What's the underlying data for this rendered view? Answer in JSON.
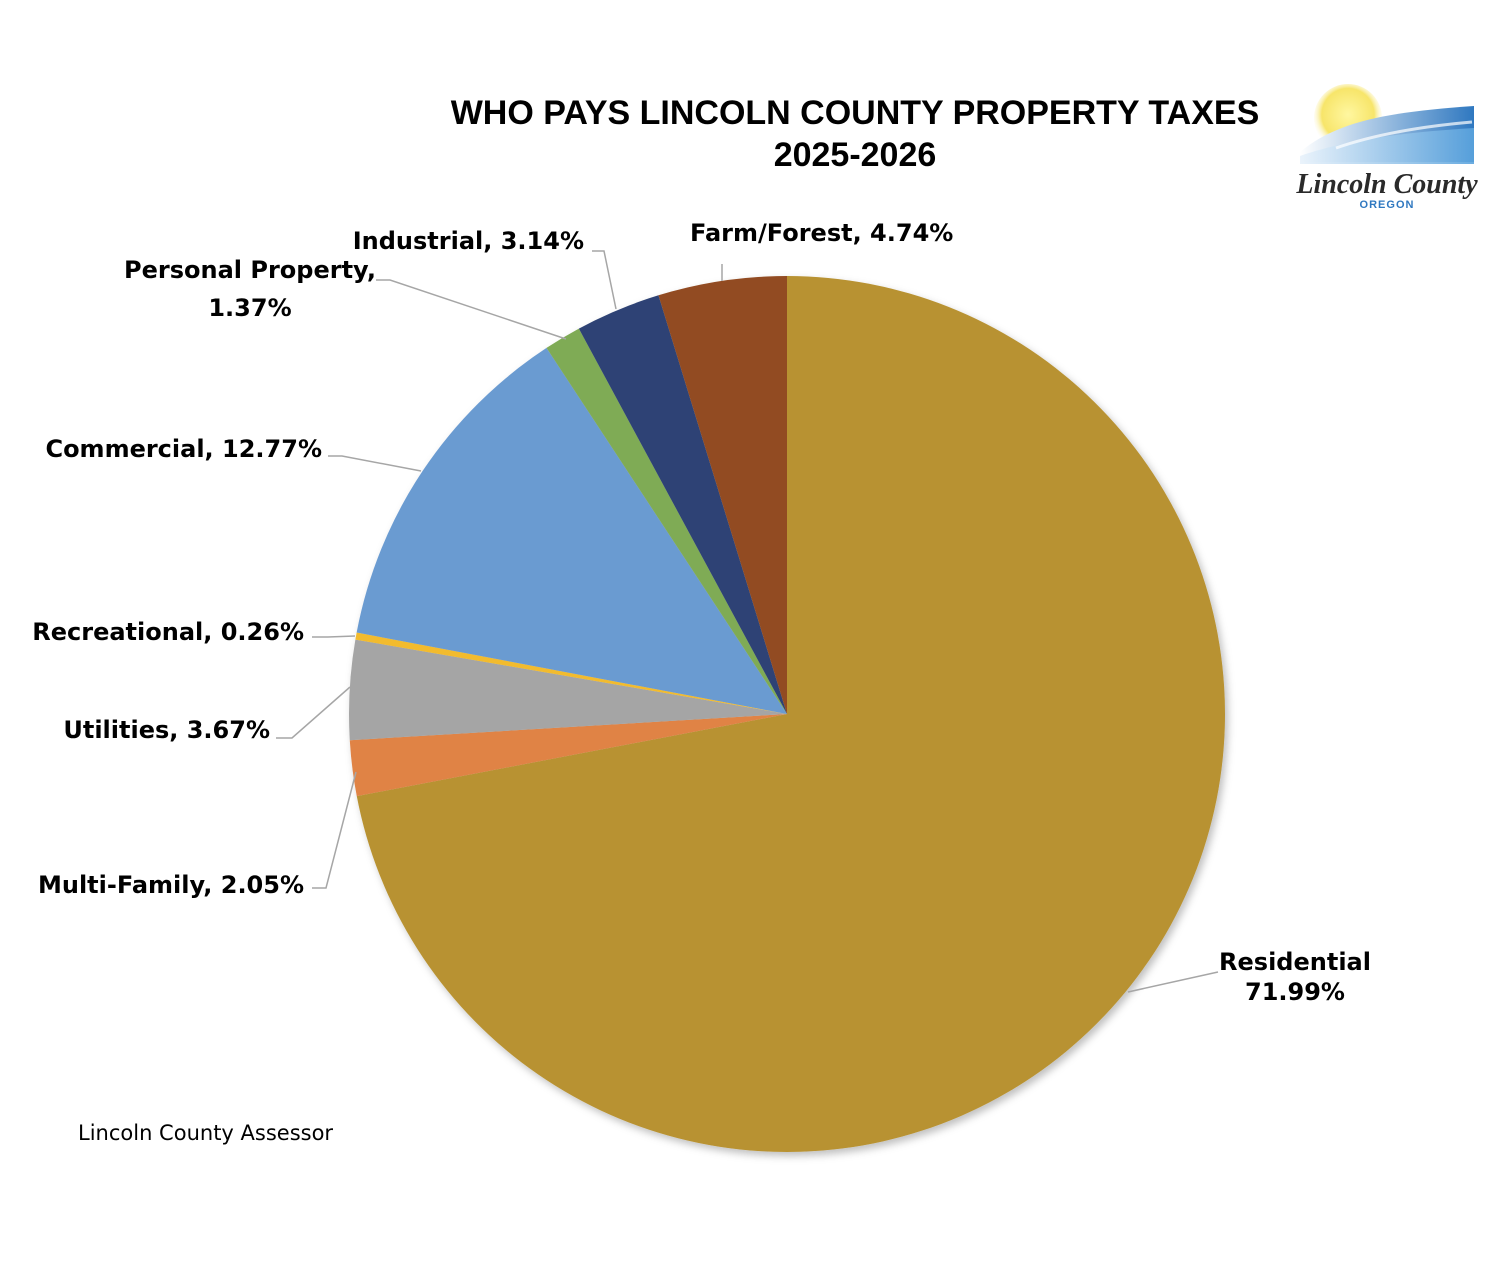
{
  "chart_data": {
    "type": "pie",
    "title": "WHO PAYS LINCOLN COUNTY PROPERTY TAXES",
    "subtitle": "2025-2026",
    "slices": [
      {
        "name": "Residential",
        "value": 71.99,
        "label": [
          "Residential",
          "71.99%"
        ],
        "color": "#b89233"
      },
      {
        "name": "Multi-Family",
        "value": 2.05,
        "label": [
          "Multi-Family, 2.05%"
        ],
        "color": "#e08345"
      },
      {
        "name": "Utilities",
        "value": 3.67,
        "label": [
          "Utilities, 3.67%"
        ],
        "color": "#a5a5a5"
      },
      {
        "name": "Recreational",
        "value": 0.26,
        "label": [
          "Recreational, 0.26%"
        ],
        "color": "#f2bb2f"
      },
      {
        "name": "Commercial",
        "value": 12.77,
        "label": [
          "Commercial, 12.77%"
        ],
        "color": "#6b9bd1"
      },
      {
        "name": "Personal Property",
        "value": 1.37,
        "label": [
          "Personal Property,",
          "1.37%"
        ],
        "color": "#7fab55"
      },
      {
        "name": "Industrial",
        "value": 3.14,
        "label": [
          "Industrial, 3.14%"
        ],
        "color": "#2e4374"
      },
      {
        "name": "Farm/Forest",
        "value": 4.74,
        "label": [
          "Farm/Forest, 4.74%"
        ],
        "color": "#924c22"
      }
    ],
    "start_angle_deg": 0,
    "direction": "clockwise"
  },
  "logo": {
    "name": "Lincoln County",
    "subtext": "OREGON"
  },
  "source": "Lincoln County Assessor"
}
